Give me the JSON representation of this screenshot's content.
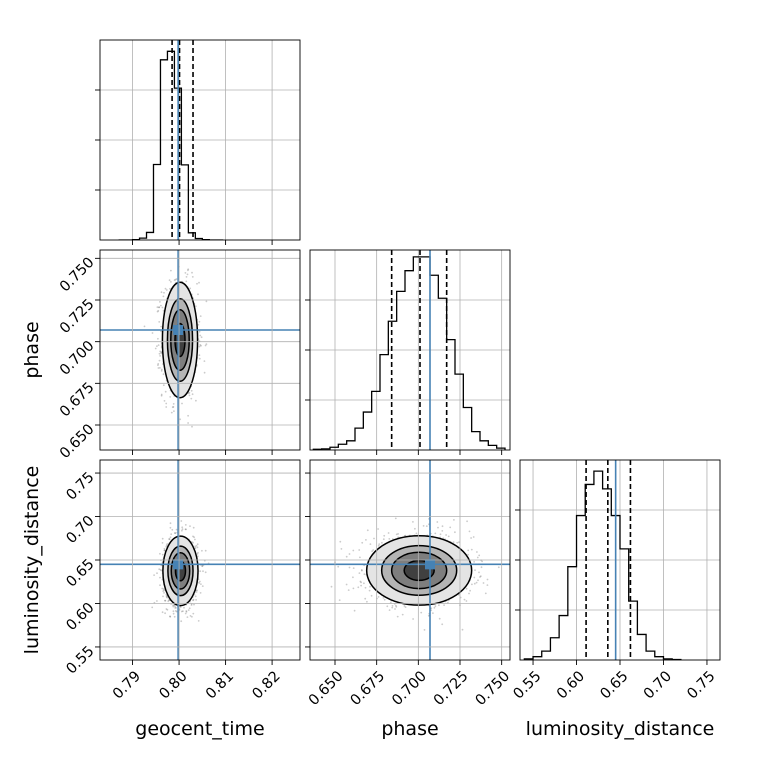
{
  "colors": {
    "truth": "#4682b4",
    "contour": "#000000",
    "grid": "#b0b0b0",
    "scatter": "#444444",
    "density_fill": [
      "#e4e4e4",
      "#b4b4b4",
      "#7e7e7e",
      "#404040"
    ]
  },
  "chart_data": {
    "type": "corner",
    "grid": true,
    "parameters": [
      {
        "name": "geocent_time",
        "range": [
          0.783,
          0.826
        ],
        "ticks": [
          0.79,
          0.8,
          0.81,
          0.82
        ],
        "tick_labels": [
          "0.79",
          "0.80",
          "0.81",
          "0.82"
        ]
      },
      {
        "name": "phase",
        "range": [
          0.635,
          0.755
        ],
        "ticks": [
          0.65,
          0.675,
          0.7,
          0.725,
          0.75
        ],
        "tick_labels": [
          "0.650",
          "0.675",
          "0.700",
          "0.725",
          "0.750"
        ]
      },
      {
        "name": "luminosity_distance",
        "range": [
          0.535,
          0.765
        ],
        "ticks": [
          0.55,
          0.6,
          0.65,
          0.7,
          0.75
        ],
        "tick_labels": [
          "0.55",
          "0.60",
          "0.65",
          "0.70",
          "0.75"
        ]
      }
    ],
    "truths": [
      0.7998,
      0.707,
      0.645
    ],
    "marginals": [
      {
        "parameter": "geocent_time",
        "quantiles": [
          0.7985,
          0.8001,
          0.803
        ],
        "bin_edges": [
          0.787,
          0.7885,
          0.79,
          0.7915,
          0.793,
          0.7945,
          0.796,
          0.7975,
          0.799,
          0.8005,
          0.802,
          0.8035,
          0.805,
          0.8065,
          0.808,
          0.8095
        ],
        "counts": [
          0,
          0,
          2,
          10,
          40,
          400,
          955,
          1000,
          805,
          398,
          38,
          8,
          2,
          0,
          0
        ],
        "ymax": 1060
      },
      {
        "parameter": "phase",
        "quantiles": [
          0.684,
          0.701,
          0.717
        ],
        "bin_edges": [
          0.637,
          0.642,
          0.647,
          0.652,
          0.657,
          0.662,
          0.667,
          0.672,
          0.677,
          0.682,
          0.687,
          0.692,
          0.697,
          0.702,
          0.707,
          0.712,
          0.717,
          0.722,
          0.727,
          0.732,
          0.737,
          0.742,
          0.747,
          0.752
        ],
        "counts": [
          3,
          5,
          12,
          25,
          40,
          95,
          165,
          255,
          415,
          560,
          690,
          780,
          840,
          840,
          760,
          660,
          480,
          330,
          185,
          80,
          40,
          20,
          8
        ],
        "ymax": 870
      },
      {
        "parameter": "luminosity_distance",
        "quantiles": [
          0.611,
          0.636,
          0.662
        ],
        "bin_edges": [
          0.54,
          0.55,
          0.56,
          0.57,
          0.58,
          0.59,
          0.6,
          0.61,
          0.62,
          0.63,
          0.64,
          0.65,
          0.66,
          0.67,
          0.68,
          0.69,
          0.7,
          0.71,
          0.72
        ],
        "counts": [
          5,
          15,
          40,
          100,
          200,
          420,
          650,
          790,
          850,
          770,
          650,
          500,
          265,
          115,
          40,
          15,
          5,
          2
        ],
        "ymax": 900
      }
    ],
    "joints": [
      {
        "x": "geocent_time",
        "y": "phase",
        "center": [
          0.8002,
          0.701
        ],
        "sigma": [
          0.0018,
          0.0165
        ],
        "contour_radii": [
          0.6,
          1.1,
          1.5,
          2.1
        ]
      },
      {
        "x": "geocent_time",
        "y": "luminosity_distance",
        "center": [
          0.8003,
          0.6375
        ],
        "sigma": [
          0.0018,
          0.019
        ],
        "contour_radii": [
          0.6,
          1.1,
          1.5,
          2.1
        ]
      },
      {
        "x": "phase",
        "y": "luminosity_distance",
        "center": [
          0.7005,
          0.638
        ],
        "sigma": [
          0.015,
          0.019
        ],
        "contour_radii": [
          0.6,
          1.1,
          1.5,
          2.1
        ]
      }
    ]
  }
}
